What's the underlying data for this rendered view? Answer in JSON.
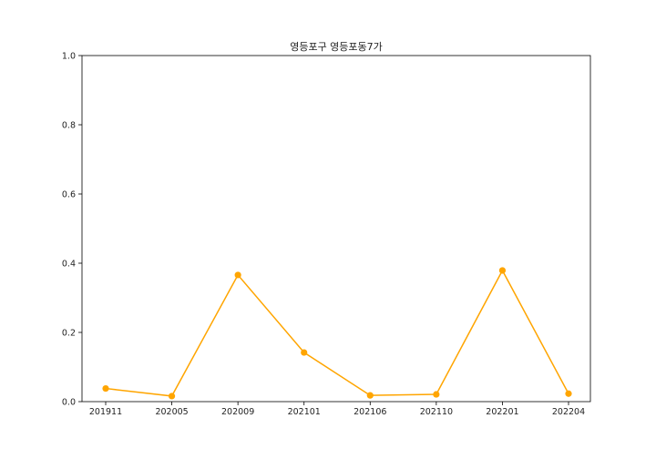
{
  "chart_data": {
    "type": "line",
    "title": "영등포구 영등포동7가",
    "xlabel": "",
    "ylabel": "",
    "categories": [
      "201911",
      "202005",
      "202009",
      "202101",
      "202106",
      "202110",
      "202201",
      "202204"
    ],
    "series": [
      {
        "values": [
          0.038,
          0.016,
          0.366,
          0.142,
          0.018,
          0.021,
          0.379,
          0.023
        ]
      }
    ],
    "ylim": [
      0.0,
      1.0
    ],
    "yticks": [
      "0.0",
      "0.2",
      "0.4",
      "0.6",
      "0.8",
      "1.0"
    ],
    "grid": false,
    "colors": {
      "line": "#FFA500",
      "marker": "#FFA500"
    }
  }
}
